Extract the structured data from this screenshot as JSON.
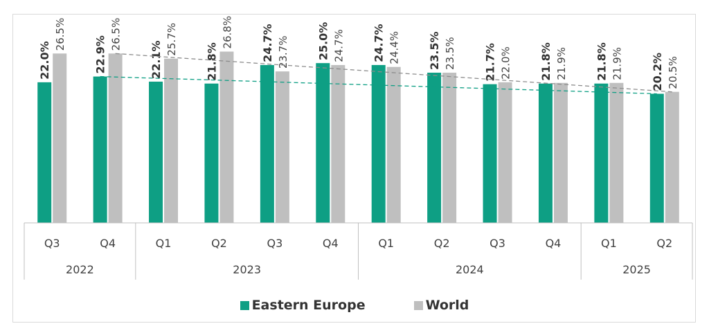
{
  "chart_data": {
    "type": "bar",
    "categories": [
      "Q3",
      "Q4",
      "Q1",
      "Q2",
      "Q3",
      "Q4",
      "Q1",
      "Q2",
      "Q3",
      "Q4",
      "Q1",
      "Q2"
    ],
    "years": [
      {
        "label": "2022",
        "count": 2
      },
      {
        "label": "2023",
        "count": 4
      },
      {
        "label": "2024",
        "count": 4
      },
      {
        "label": "2025",
        "count": 2
      }
    ],
    "series": [
      {
        "name": "Eastern Europe",
        "color": "#0e9f84",
        "values": [
          22.0,
          22.9,
          22.1,
          21.8,
          24.7,
          25.0,
          24.7,
          23.5,
          21.7,
          21.8,
          21.8,
          20.2
        ],
        "labels": [
          "22.0%",
          "22.9%",
          "22.1%",
          "21.8%",
          "24.7%",
          "25.0%",
          "24.7%",
          "23.5%",
          "21.7%",
          "21.8%",
          "21.8%",
          "20.2%"
        ],
        "label_bold": true,
        "trendline": {
          "from_index": 1,
          "to_index": 11,
          "from": 22.9,
          "to": 20.2,
          "style": "dashed"
        }
      },
      {
        "name": "World",
        "color": "#bfbfbf",
        "values": [
          26.5,
          26.5,
          25.7,
          26.8,
          23.7,
          24.7,
          24.4,
          23.5,
          22.0,
          21.9,
          21.9,
          20.5
        ],
        "labels": [
          "26.5%",
          "26.5%",
          "25.7%",
          "26.8%",
          "23.7%",
          "24.7%",
          "24.4%",
          "23.5%",
          "22.0%",
          "21.9%",
          "21.9%",
          "20.5%"
        ],
        "label_bold": false,
        "trendline": {
          "from_index": 1,
          "to_index": 11,
          "from": 26.5,
          "to": 20.5,
          "style": "dashed"
        }
      }
    ],
    "ylim": [
      0,
      30
    ],
    "legend": "bottom-center",
    "grid": false
  }
}
